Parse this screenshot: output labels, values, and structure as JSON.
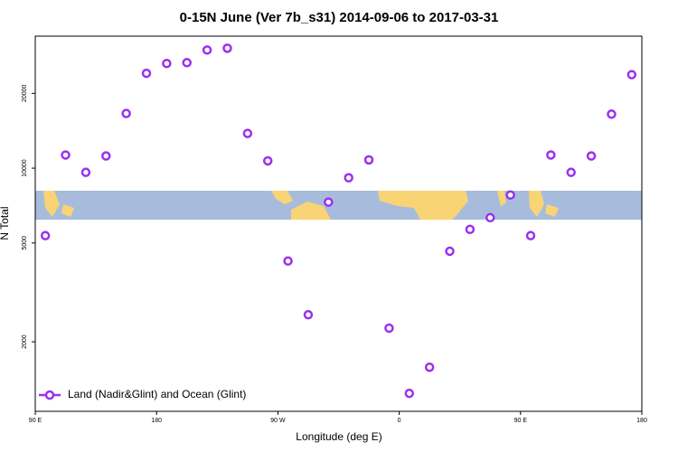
{
  "chart_data": {
    "type": "scatter",
    "title": "0-15N June (Ver 7b_s31)   2014-09-06 to 2017-03-31",
    "x_label": "Longitude (deg E)",
    "y_label": "N Total",
    "log_y": true,
    "legend_position": "bottom-left",
    "xlim": [
      90,
      540
    ],
    "ylim": [
      1050,
      34000
    ],
    "xticks": [
      {
        "value": 90,
        "label": "90 E"
      },
      180,
      {
        "value": 270,
        "label": "90 W"
      },
      {
        "value": 360,
        "label": "0"
      },
      {
        "value": 450,
        "label": "90 E"
      },
      {
        "value": 540,
        "label": "180"
      }
    ],
    "yticks": [
      2000,
      5000,
      10000,
      20000
    ],
    "series": [
      {
        "name": "Land (Nadir&Glint) and Ocean (Glint)",
        "color": "#9b30f0",
        "x": [
          97.5,
          112.5,
          127.5,
          142.5,
          157.5,
          172.5,
          187.5,
          202.5,
          217.5,
          232.5,
          247.5,
          262.5,
          277.5,
          292.5,
          307.5,
          322.5,
          337.5,
          352.5,
          367.5,
          382.5,
          397.5,
          412.5,
          427.5,
          442.5,
          457.5,
          472.5,
          487.5,
          502.5,
          517.5,
          532.5
        ],
        "values": [
          5350,
          11300,
          9620,
          11200,
          16600,
          24100,
          26400,
          26600,
          29900,
          30400,
          13800,
          10700,
          4230,
          2570,
          7300,
          9150,
          10800,
          2270,
          1240,
          1580,
          4630,
          5670,
          6320,
          7800,
          5350,
          11300,
          9620,
          11200,
          16500,
          23800
        ]
      }
    ]
  }
}
